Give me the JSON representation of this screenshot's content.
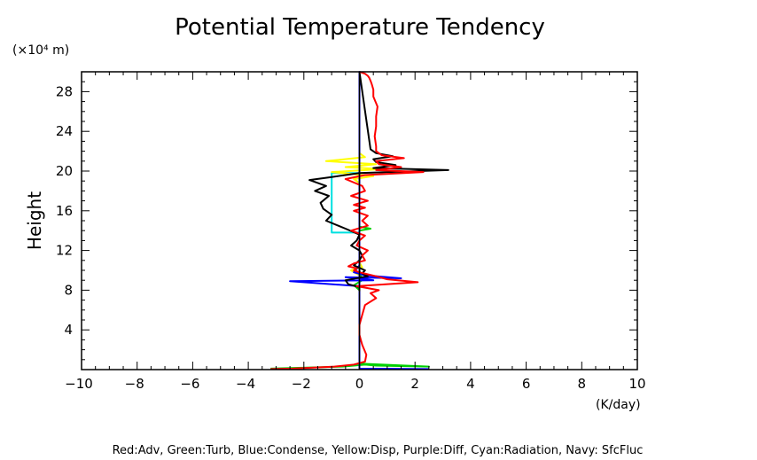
{
  "chart_data": {
    "type": "line",
    "title": "Potential Temperature Tendency",
    "xlabel": "(K/day)",
    "ylabel": "Height",
    "yunit": "(×10⁴ m)",
    "footer": "Red:Adv, Green:Turb, Blue:Condense, Yellow:Disp, Purple:Diff, Cyan:Radiation, Navy: SfcFluc",
    "xlim": [
      -10,
      10
    ],
    "ylim": [
      0,
      30
    ],
    "xticks": [
      -10,
      -8,
      -6,
      -4,
      -2,
      0,
      2,
      4,
      6,
      8,
      10
    ],
    "yticks": [
      4,
      8,
      12,
      16,
      20,
      24,
      28
    ],
    "series": [
      {
        "name": "Cyan",
        "color": "#00e0e0",
        "x": [
          0,
          0,
          -0.3,
          -1.0,
          -1.0,
          -1.0,
          -1.0,
          -0.5,
          0,
          0,
          0
        ],
        "y": [
          0.5,
          13.8,
          13.8,
          13.8,
          16,
          18,
          19.8,
          19.8,
          19.8,
          22,
          30
        ]
      },
      {
        "name": "Green",
        "color": "#00d000",
        "x": [
          -3.2,
          -0.6,
          0.2,
          0.6,
          2.5,
          0,
          0,
          -0.2,
          0.1,
          0,
          0,
          0.4,
          0,
          0
        ],
        "y": [
          0.1,
          0.3,
          0.5,
          0.4,
          0.3,
          0.6,
          8.0,
          8.5,
          9.0,
          10,
          14,
          14.2,
          14.4,
          30
        ]
      },
      {
        "name": "Yellow",
        "color": "#ffff00",
        "x": [
          0,
          0,
          -0.3,
          0.1,
          0,
          0,
          -0.2,
          0.5,
          -1.0,
          0.8,
          -0.5,
          0.6,
          -1.2,
          0.2,
          0,
          0
        ],
        "y": [
          0.5,
          9.5,
          10.0,
          10.3,
          10.8,
          18.8,
          19.2,
          19.5,
          19.9,
          20.2,
          20.4,
          20.7,
          21.0,
          21.4,
          21.8,
          30
        ]
      },
      {
        "name": "Blue",
        "color": "#0000ff",
        "x": [
          0,
          0,
          -2.5,
          0.5,
          0,
          -0.5,
          1.5,
          0.2,
          -0.2,
          0,
          0,
          0,
          0,
          2.5
        ],
        "y": [
          8.0,
          8.4,
          8.9,
          9.0,
          9.2,
          9.3,
          9.2,
          9.5,
          9.8,
          10.5,
          14,
          30,
          0.1,
          0.05
        ]
      },
      {
        "name": "Black",
        "color": "#000000",
        "x": [
          0,
          0,
          -0.4,
          -0.5,
          0.3,
          0.1,
          0.2,
          -0.2,
          0,
          0.1,
          0,
          -0.3,
          -0.1,
          0,
          -0.5,
          -1.2,
          -1.0,
          -1.3,
          -1.4,
          -1.1,
          -1.6,
          -1.2,
          -1.8,
          -1.0,
          0,
          3.2,
          0.5,
          1.3,
          0.6,
          0.5,
          1.2,
          0.6,
          0.4,
          0
        ],
        "y": [
          7.9,
          8.3,
          8.6,
          9.0,
          9.4,
          9.7,
          10.0,
          10.5,
          11,
          11.5,
          12,
          12.5,
          13,
          13.6,
          14.2,
          15,
          15.6,
          16.2,
          16.8,
          17.5,
          18,
          18.5,
          19.1,
          19.4,
          19.8,
          20.1,
          20.3,
          20.6,
          20.9,
          21.2,
          21.5,
          21.8,
          22.2,
          30
        ]
      },
      {
        "name": "Red",
        "color": "#ff0000",
        "x": [
          -3.2,
          -2.4,
          -0.9,
          -0.2,
          0.2,
          0.25,
          0.1,
          0,
          0,
          0.1,
          0.2,
          0.6,
          0.4,
          0.7,
          -0.1,
          2.1,
          1.0,
          0.6,
          0.3,
          0,
          -0.2,
          -0.1,
          -0.4,
          -0.2,
          0.2,
          0.1,
          0.3,
          -0.1,
          0,
          0.2,
          -0.3,
          0.3,
          0.1,
          0.3,
          -0.2,
          0.2,
          -0.2,
          0.3,
          -0.3,
          0.2,
          0.1,
          -0.5,
          0.2,
          2.3,
          0.6,
          1.5,
          0.7,
          0.6,
          1.6,
          0.8,
          0.6,
          0.6,
          0.55,
          0.6,
          0.6,
          0.65,
          0.5,
          0.5,
          0.45,
          0.4,
          0.35,
          0.3,
          0.2,
          0.05,
          0
        ],
        "y": [
          0.05,
          0.1,
          0.3,
          0.5,
          0.8,
          1.5,
          2.5,
          3.5,
          4.5,
          5.5,
          6.5,
          7.2,
          7.7,
          8.0,
          8.4,
          8.8,
          9.1,
          9.4,
          9.6,
          9.8,
          10.0,
          10.2,
          10.4,
          10.7,
          11,
          11.5,
          12,
          12.5,
          13,
          13.5,
          14,
          14.5,
          15,
          15.5,
          16,
          16.3,
          16.6,
          17,
          17.5,
          18,
          18.5,
          19.2,
          19.6,
          19.9,
          20.1,
          20.4,
          20.7,
          21.0,
          21.3,
          21.6,
          22,
          22.5,
          23.5,
          24.5,
          25.5,
          26.5,
          27.5,
          28.2,
          28.7,
          29.1,
          29.4,
          29.6,
          29.8,
          29.95,
          30
        ]
      }
    ]
  }
}
